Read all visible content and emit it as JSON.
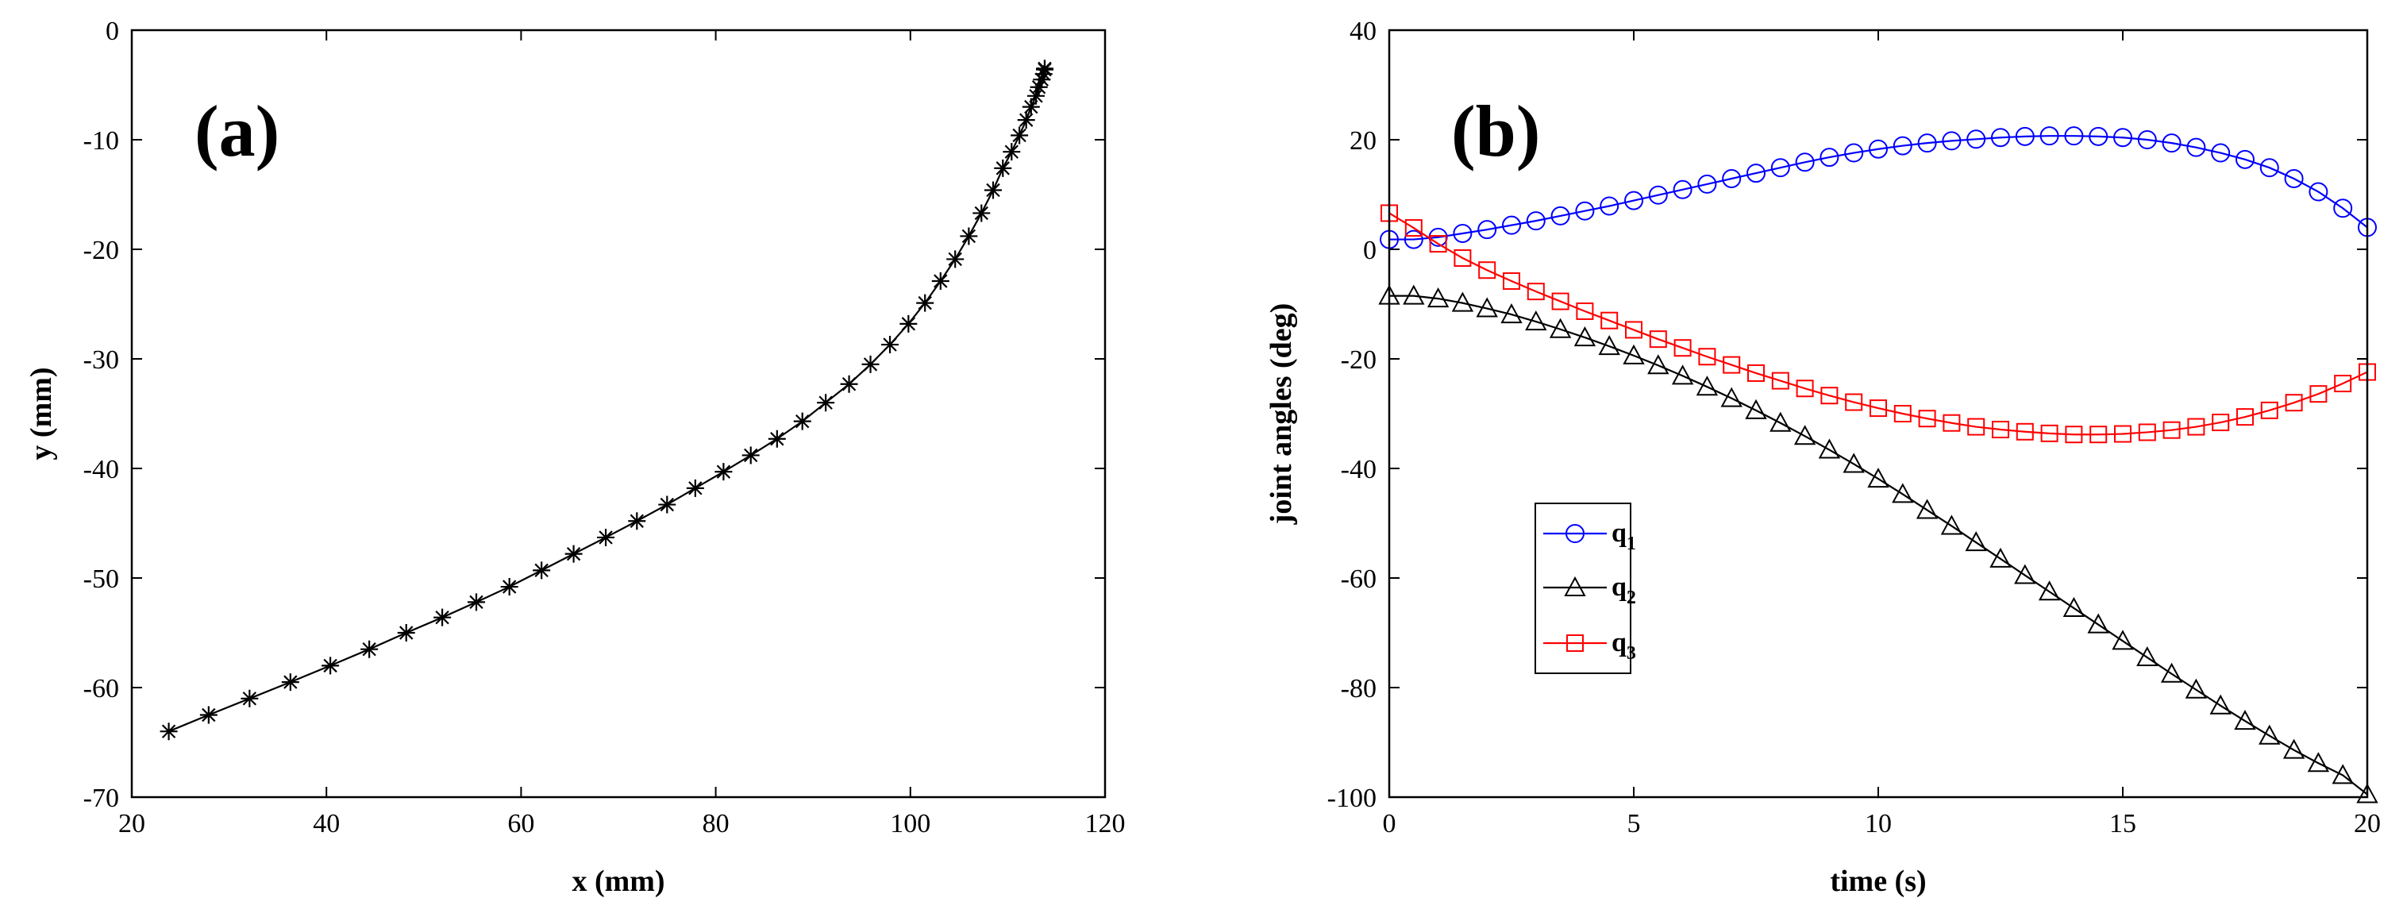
{
  "chart_data": [
    {
      "type": "line",
      "panel_label": "(a)",
      "title": "",
      "xlabel": "x (mm)",
      "ylabel": "y (mm)",
      "xlim": [
        20,
        120
      ],
      "ylim": [
        -70,
        0
      ],
      "xticks": [
        "20",
        "40",
        "60",
        "80",
        "100",
        "120"
      ],
      "yticks": [
        "0",
        "-10",
        "-20",
        "-30",
        "-40",
        "-50",
        "-60",
        "-70"
      ],
      "series": [
        {
          "name": "trajectory",
          "color": "#000000",
          "marker": "asterisk",
          "x": [
            23.8,
            27.9,
            32.1,
            36.3,
            40.4,
            44.4,
            48.2,
            51.9,
            55.4,
            58.8,
            62.1,
            65.4,
            68.7,
            71.9,
            75.0,
            77.9,
            80.8,
            83.6,
            86.3,
            88.9,
            91.3,
            93.7,
            95.9,
            97.9,
            99.8,
            101.5,
            103.1,
            104.6,
            106.0,
            107.3,
            108.5,
            109.5,
            110.4,
            111.2,
            111.9,
            112.4,
            112.9,
            113.2,
            113.5,
            113.7,
            113.8,
            113.8
          ],
          "y": [
            -64.0,
            -62.5,
            -61.0,
            -59.5,
            -58.0,
            -56.5,
            -55.0,
            -53.6,
            -52.2,
            -50.8,
            -49.3,
            -47.8,
            -46.3,
            -44.8,
            -43.3,
            -41.8,
            -40.3,
            -38.8,
            -37.3,
            -35.7,
            -34.0,
            -32.3,
            -30.5,
            -28.7,
            -26.8,
            -24.9,
            -22.9,
            -20.9,
            -18.8,
            -16.7,
            -14.6,
            -12.6,
            -11.1,
            -9.6,
            -8.2,
            -7.0,
            -6.0,
            -5.2,
            -4.5,
            -4.0,
            -3.6,
            -3.5
          ]
        }
      ]
    },
    {
      "type": "line",
      "panel_label": "(b)",
      "title": "",
      "xlabel": "time (s)",
      "ylabel": "joint angles (deg)",
      "xlim": [
        0,
        20
      ],
      "ylim": [
        -100,
        40
      ],
      "xticks": [
        "0",
        "5",
        "10",
        "15",
        "20"
      ],
      "yticks": [
        "40",
        "20",
        "0",
        "-20",
        "-40",
        "-60",
        "-80",
        "-100"
      ],
      "legend_position": "lower-left",
      "x": [
        0,
        0.5,
        1,
        1.5,
        2,
        2.5,
        3,
        3.5,
        4,
        4.5,
        5,
        5.5,
        6,
        6.5,
        7,
        7.5,
        8,
        8.5,
        9,
        9.5,
        10,
        10.5,
        11,
        11.5,
        12,
        12.5,
        13,
        13.5,
        14,
        14.5,
        15,
        15.5,
        16,
        16.5,
        17,
        17.5,
        18,
        18.5,
        19,
        19.5,
        20
      ],
      "series": [
        {
          "name": "q",
          "subscript": "1",
          "color": "#0000ff",
          "marker": "circle",
          "values": [
            1.8,
            1.8,
            2.2,
            2.9,
            3.6,
            4.4,
            5.2,
            6.1,
            7.0,
            7.9,
            8.9,
            9.9,
            10.9,
            11.9,
            12.9,
            13.9,
            14.9,
            15.9,
            16.8,
            17.6,
            18.3,
            18.9,
            19.4,
            19.8,
            20.1,
            20.4,
            20.6,
            20.7,
            20.7,
            20.6,
            20.4,
            20.0,
            19.4,
            18.6,
            17.6,
            16.4,
            14.9,
            12.9,
            10.5,
            7.5,
            4.0
          ]
        },
        {
          "name": "q",
          "subscript": "2",
          "color": "#000000",
          "marker": "triangle",
          "values": [
            -8.5,
            -8.5,
            -9.0,
            -9.8,
            -10.8,
            -11.9,
            -13.2,
            -14.6,
            -16.1,
            -17.7,
            -19.4,
            -21.2,
            -23.1,
            -25.1,
            -27.2,
            -29.4,
            -31.7,
            -34.1,
            -36.6,
            -39.2,
            -41.9,
            -44.7,
            -47.6,
            -50.5,
            -53.5,
            -56.5,
            -59.5,
            -62.5,
            -65.5,
            -68.5,
            -71.5,
            -74.5,
            -77.5,
            -80.4,
            -83.3,
            -86.1,
            -88.8,
            -91.4,
            -93.8,
            -96.0,
            -99.5
          ]
        },
        {
          "name": "q",
          "subscript": "3",
          "color": "#ff0000",
          "marker": "square",
          "values": [
            6.6,
            3.9,
            1.0,
            -1.6,
            -3.8,
            -5.8,
            -7.7,
            -9.5,
            -11.3,
            -13.0,
            -14.7,
            -16.4,
            -18.0,
            -19.6,
            -21.1,
            -22.6,
            -24.0,
            -25.4,
            -26.7,
            -27.9,
            -29.0,
            -30.0,
            -30.9,
            -31.7,
            -32.4,
            -32.9,
            -33.3,
            -33.6,
            -33.8,
            -33.8,
            -33.7,
            -33.4,
            -33.0,
            -32.4,
            -31.6,
            -30.6,
            -29.4,
            -28.0,
            -26.4,
            -24.5,
            -22.4
          ]
        }
      ]
    }
  ]
}
